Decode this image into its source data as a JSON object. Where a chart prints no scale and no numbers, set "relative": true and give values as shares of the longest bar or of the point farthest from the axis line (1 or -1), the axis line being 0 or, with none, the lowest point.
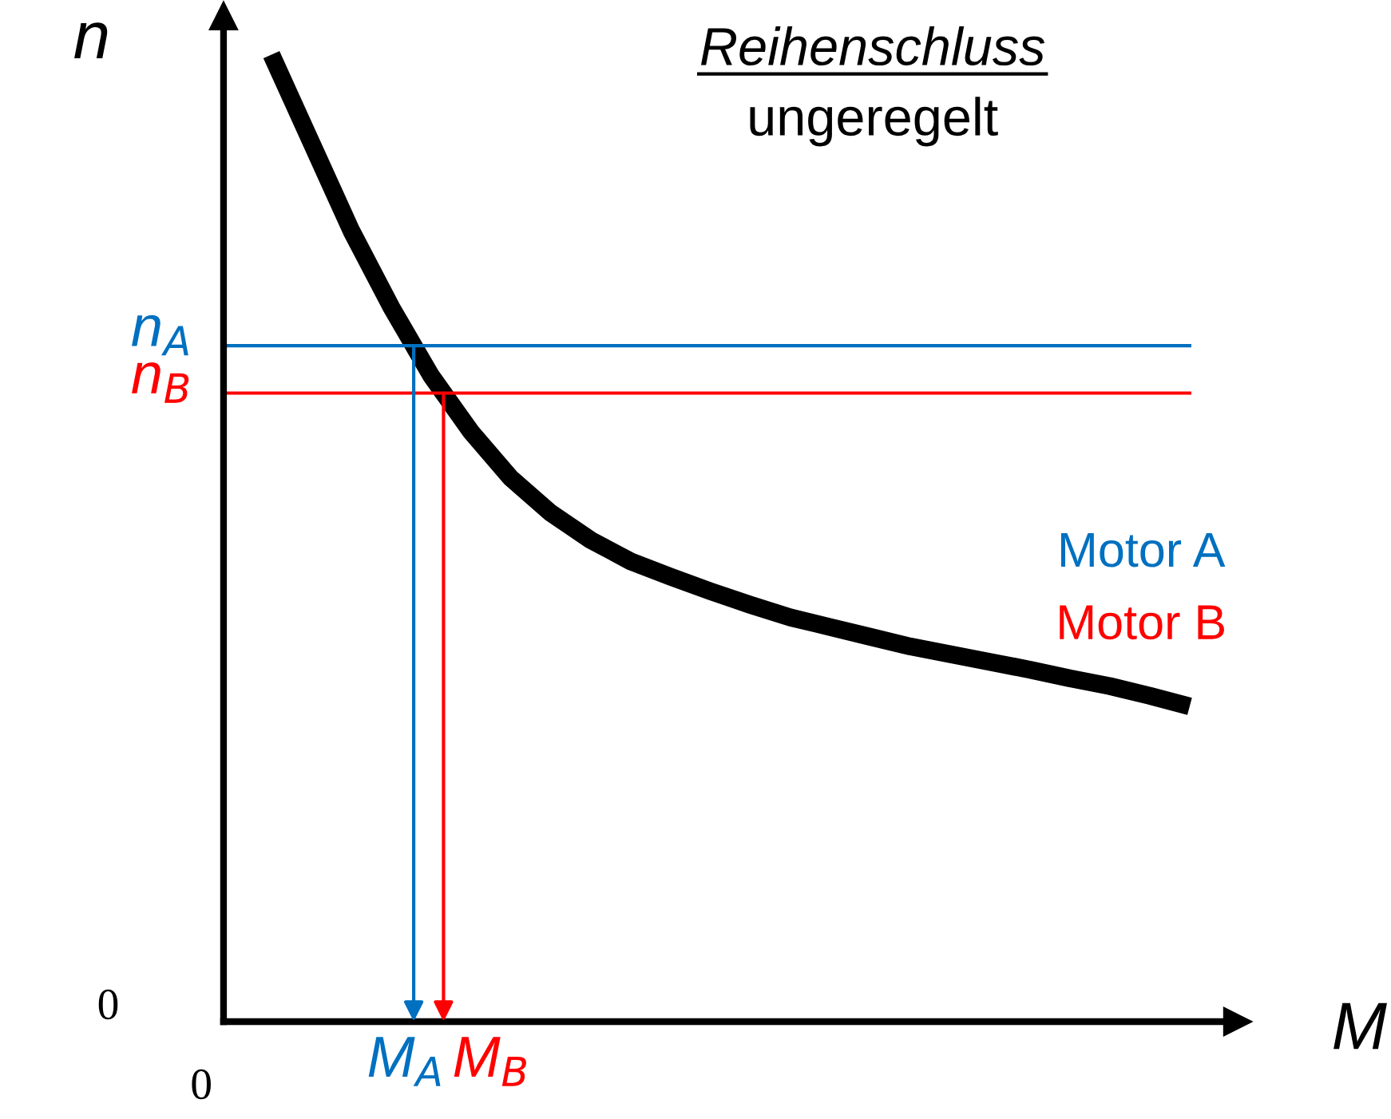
{
  "chart_data": {
    "type": "line",
    "relative": true,
    "title": "Reihenschluss",
    "subtitle": "ungeregelt",
    "xlabel": "M",
    "ylabel": "n",
    "categories": [
      null,
      null,
      null,
      null,
      null,
      null,
      null,
      null,
      null,
      null,
      null,
      null,
      null,
      null,
      null,
      null,
      null,
      null,
      null,
      null,
      null,
      null,
      null,
      null
    ],
    "series": [
      {
        "color": "#000000",
        "values": [
          1.0,
          0.909,
          0.818,
          0.739,
          0.668,
          0.61,
          0.562,
          0.526,
          0.498,
          0.476,
          0.46,
          0.445,
          0.431,
          0.418,
          0.408,
          0.398,
          0.388,
          0.38,
          0.372,
          0.364,
          0.355,
          0.347,
          0.337,
          0.326
        ]
      }
    ],
    "ref_lines": [
      {
        "axis": "y",
        "value": 0.699,
        "label": "n$_{A}$",
        "color": "#0070c0"
      },
      {
        "axis": "y",
        "value": 0.65,
        "label": "n$_{B}$",
        "color": "#ff0000"
      }
    ],
    "annotations": [
      "Motor A",
      "Motor B",
      "0",
      "0",
      "M$_{A}$",
      "M$_{B}$"
    ],
    "marker": "none",
    "line_style": "solid"
  }
}
